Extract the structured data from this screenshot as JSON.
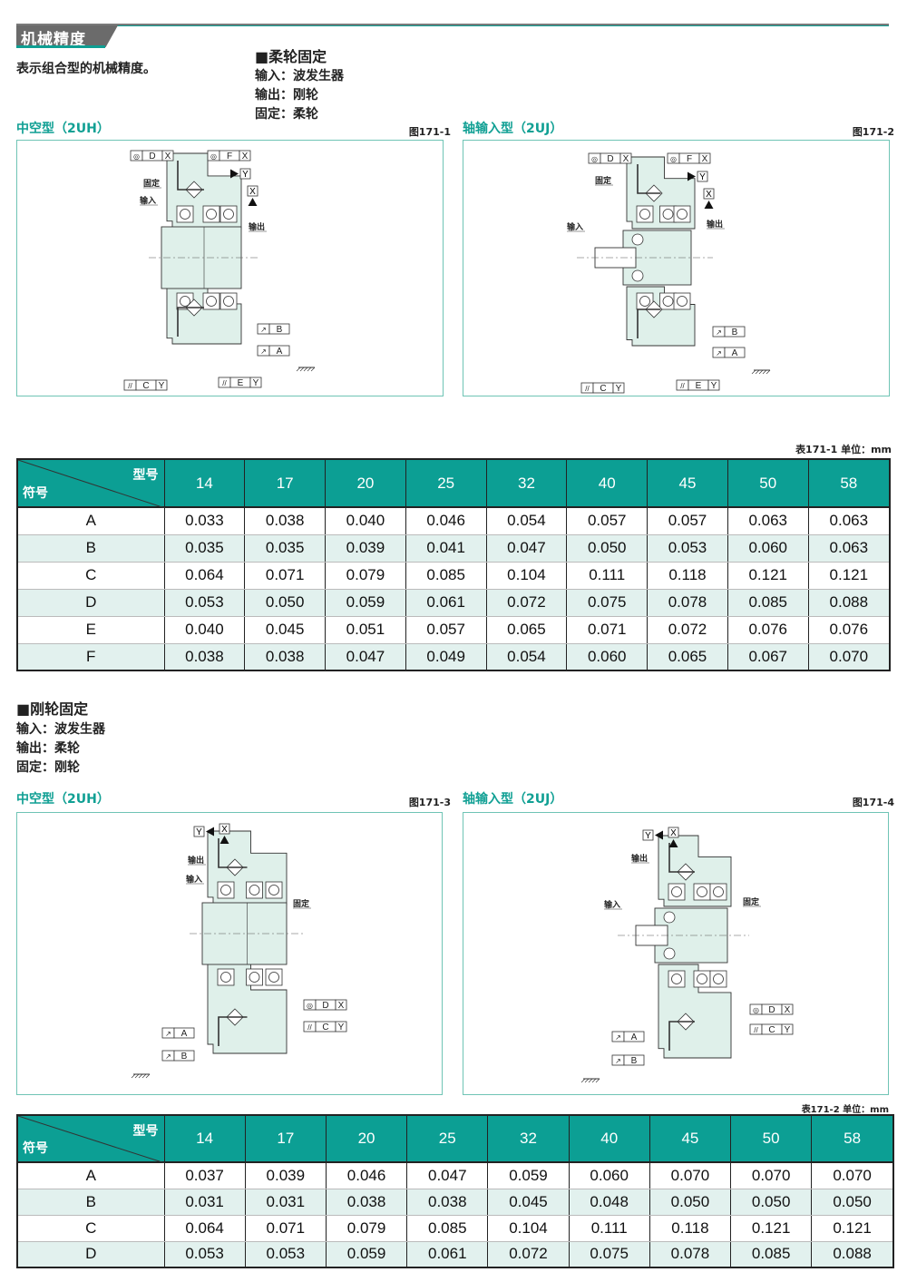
{
  "header": {
    "title": "机械精度",
    "description": "表示组合型的机械精度。"
  },
  "colors": {
    "accent": "#0c9f94",
    "row_alt": "#e2f1ee",
    "panel_border": "#6fc4b5",
    "body_fill": "#dff0ea"
  },
  "section1": {
    "title": "■柔轮固定",
    "lines": [
      "输入：波发生器",
      "输出：刚轮",
      "固定：柔轮"
    ],
    "figures": [
      {
        "subtitle": "中空型（2UH）",
        "fig_no": "图171-1",
        "labels": [
          "固定",
          "输入",
          "输出"
        ],
        "frames": [
          {
            "sym": "◎",
            "letter": "D",
            "datum": "X"
          },
          {
            "sym": "◎",
            "letter": "F",
            "datum": "X"
          },
          {
            "sym": "↗",
            "letter": "B",
            "datum": ""
          },
          {
            "sym": "↗",
            "letter": "A",
            "datum": ""
          },
          {
            "sym": "//",
            "letter": "C",
            "datum": "Y"
          },
          {
            "sym": "//",
            "letter": "E",
            "datum": "Y"
          }
        ],
        "datums": [
          "Y",
          "X"
        ]
      },
      {
        "subtitle": "轴输入型（2UJ）",
        "fig_no": "图171-2",
        "labels": [
          "固定",
          "输入",
          "输出"
        ],
        "frames": [
          {
            "sym": "◎",
            "letter": "D",
            "datum": "X"
          },
          {
            "sym": "◎",
            "letter": "F",
            "datum": "X"
          },
          {
            "sym": "↗",
            "letter": "B",
            "datum": ""
          },
          {
            "sym": "↗",
            "letter": "A",
            "datum": ""
          },
          {
            "sym": "//",
            "letter": "C",
            "datum": "Y"
          },
          {
            "sym": "//",
            "letter": "E",
            "datum": "Y"
          }
        ],
        "datums": [
          "Y",
          "X"
        ]
      }
    ],
    "table": {
      "caption": "表171-1 单位：mm",
      "corner_top": "型号",
      "corner_bottom": "符号",
      "columns": [
        "14",
        "17",
        "20",
        "25",
        "32",
        "40",
        "45",
        "50",
        "58"
      ],
      "rows": [
        {
          "symbol": "A",
          "values": [
            "0.033",
            "0.038",
            "0.040",
            "0.046",
            "0.054",
            "0.057",
            "0.057",
            "0.063",
            "0.063"
          ]
        },
        {
          "symbol": "B",
          "values": [
            "0.035",
            "0.035",
            "0.039",
            "0.041",
            "0.047",
            "0.050",
            "0.053",
            "0.060",
            "0.063"
          ]
        },
        {
          "symbol": "C",
          "values": [
            "0.064",
            "0.071",
            "0.079",
            "0.085",
            "0.104",
            "0.111",
            "0.118",
            "0.121",
            "0.121"
          ]
        },
        {
          "symbol": "D",
          "values": [
            "0.053",
            "0.050",
            "0.059",
            "0.061",
            "0.072",
            "0.075",
            "0.078",
            "0.085",
            "0.088"
          ]
        },
        {
          "symbol": "E",
          "values": [
            "0.040",
            "0.045",
            "0.051",
            "0.057",
            "0.065",
            "0.071",
            "0.072",
            "0.076",
            "0.076"
          ]
        },
        {
          "symbol": "F",
          "values": [
            "0.038",
            "0.038",
            "0.047",
            "0.049",
            "0.054",
            "0.060",
            "0.065",
            "0.067",
            "0.070"
          ]
        }
      ]
    }
  },
  "section2": {
    "title": "■刚轮固定",
    "lines": [
      "输入：波发生器",
      "输出：柔轮",
      "固定：刚轮"
    ],
    "figures": [
      {
        "subtitle": "中空型（2UH）",
        "fig_no": "图171-3",
        "labels": [
          "输出",
          "输入",
          "固定"
        ],
        "frames": [
          {
            "sym": "◎",
            "letter": "D",
            "datum": "X"
          },
          {
            "sym": "//",
            "letter": "C",
            "datum": "Y"
          },
          {
            "sym": "↗",
            "letter": "A",
            "datum": ""
          },
          {
            "sym": "↗",
            "letter": "B",
            "datum": ""
          }
        ],
        "datums": [
          "Y",
          "X"
        ]
      },
      {
        "subtitle": "轴输入型（2UJ）",
        "fig_no": "图171-4",
        "labels": [
          "输出",
          "输入",
          "固定"
        ],
        "frames": [
          {
            "sym": "◎",
            "letter": "D",
            "datum": "X"
          },
          {
            "sym": "//",
            "letter": "C",
            "datum": "Y"
          },
          {
            "sym": "↗",
            "letter": "A",
            "datum": ""
          },
          {
            "sym": "↗",
            "letter": "B",
            "datum": ""
          }
        ],
        "datums": [
          "Y",
          "X"
        ]
      }
    ],
    "table": {
      "caption": "表171-2 单位：mm",
      "corner_top": "型号",
      "corner_bottom": "符号",
      "columns": [
        "14",
        "17",
        "20",
        "25",
        "32",
        "40",
        "45",
        "50",
        "58"
      ],
      "rows": [
        {
          "symbol": "A",
          "values": [
            "0.037",
            "0.039",
            "0.046",
            "0.047",
            "0.059",
            "0.060",
            "0.070",
            "0.070",
            "0.070"
          ]
        },
        {
          "symbol": "B",
          "values": [
            "0.031",
            "0.031",
            "0.038",
            "0.038",
            "0.045",
            "0.048",
            "0.050",
            "0.050",
            "0.050"
          ]
        },
        {
          "symbol": "C",
          "values": [
            "0.064",
            "0.071",
            "0.079",
            "0.085",
            "0.104",
            "0.111",
            "0.118",
            "0.121",
            "0.121"
          ]
        },
        {
          "symbol": "D",
          "values": [
            "0.053",
            "0.053",
            "0.059",
            "0.061",
            "0.072",
            "0.075",
            "0.078",
            "0.085",
            "0.088"
          ]
        }
      ]
    }
  }
}
